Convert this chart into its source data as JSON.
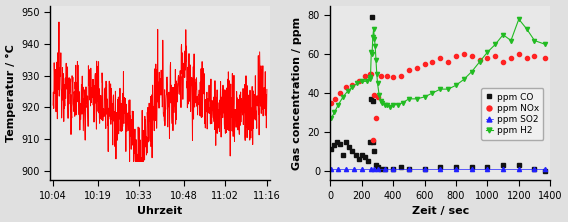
{
  "left_chart": {
    "ylabel": "Temperatur / °C",
    "xlabel": "Uhrzeit",
    "xlim_labels": [
      "10:04",
      "10:19",
      "10:33",
      "10:48",
      "11:02",
      "11:16"
    ],
    "ylim": [
      897,
      952
    ],
    "yticks": [
      900,
      910,
      920,
      930,
      940,
      950
    ],
    "line_color": "#ff0000",
    "line_width": 0.7,
    "bg_color": "#e8e8e8"
  },
  "right_chart": {
    "ylabel": "Gas concentration / ppm",
    "xlabel": "Zeit / sec",
    "xlim": [
      0,
      1400
    ],
    "ylim": [
      -5,
      85
    ],
    "yticks": [
      0,
      20,
      40,
      60,
      80
    ],
    "xticks": [
      0,
      200,
      400,
      600,
      800,
      1000,
      1200,
      1400
    ],
    "co_color": "#111111",
    "nox_color": "#ff2222",
    "so2_color": "#2222ff",
    "h2_color": "#22bb22",
    "legend_labels": [
      "ppm CO",
      "ppm NOx",
      "ppm SO2",
      "ppm H2"
    ],
    "bg_color": "#e8e8e8"
  },
  "fig_bg": "#e0e0e0"
}
